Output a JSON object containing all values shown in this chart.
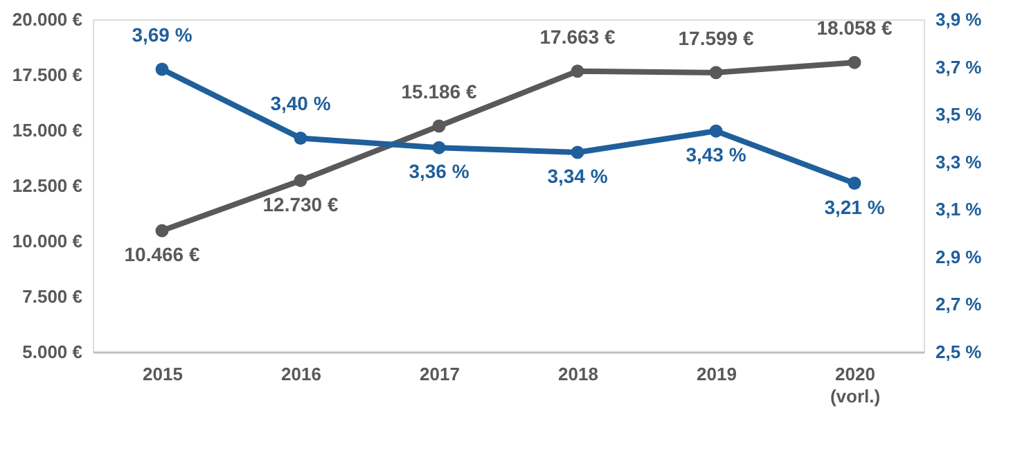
{
  "chart_data": {
    "type": "line",
    "categories": [
      "2015",
      "2016",
      "2017",
      "2018",
      "2019",
      "2020\n(vorl.)"
    ],
    "series": [
      {
        "color": "#595959",
        "values": [
          10466,
          12730,
          15186,
          17663,
          17599,
          18058
        ],
        "value_labels": [
          "10.466 €",
          "12.730 €",
          "15.186 €",
          "17.663 €",
          "17.599 €",
          "18.058 €"
        ]
      },
      {
        "color": "#1f5f9b",
        "axis": "y2",
        "values": [
          3.69,
          3.4,
          3.36,
          3.34,
          3.43,
          3.21
        ],
        "value_labels": [
          "3,69 %",
          "3,40 %",
          "3,36 %",
          "3,34 %",
          "3,43 %",
          "3,21 %"
        ]
      }
    ],
    "ylim": [
      5000,
      20000
    ],
    "yticks": [
      {
        "value": 5000,
        "label": "5.000 €"
      },
      {
        "value": 7500,
        "label": "7.500 €"
      },
      {
        "value": 10000,
        "label": "10.000 €"
      },
      {
        "value": 12500,
        "label": "12.500 €"
      },
      {
        "value": 15000,
        "label": "15.000 €"
      },
      {
        "value": 17500,
        "label": "17.500 €"
      },
      {
        "value": 20000,
        "label": "20.000 €"
      }
    ],
    "y2lim": [
      2.5,
      3.9
    ],
    "y2ticks": [
      {
        "value": 2.5,
        "label": "2,5 %"
      },
      {
        "value": 2.7,
        "label": "2,7 %"
      },
      {
        "value": 2.9,
        "label": "2,9 %"
      },
      {
        "value": 3.1,
        "label": "3,1 %"
      },
      {
        "value": 3.3,
        "label": "3,3 %"
      },
      {
        "value": 3.5,
        "label": "3,5 %"
      },
      {
        "value": 3.7,
        "label": "3,7 %"
      },
      {
        "value": 3.9,
        "label": "3,9 %"
      }
    ],
    "marker": "circle",
    "grid": false
  }
}
